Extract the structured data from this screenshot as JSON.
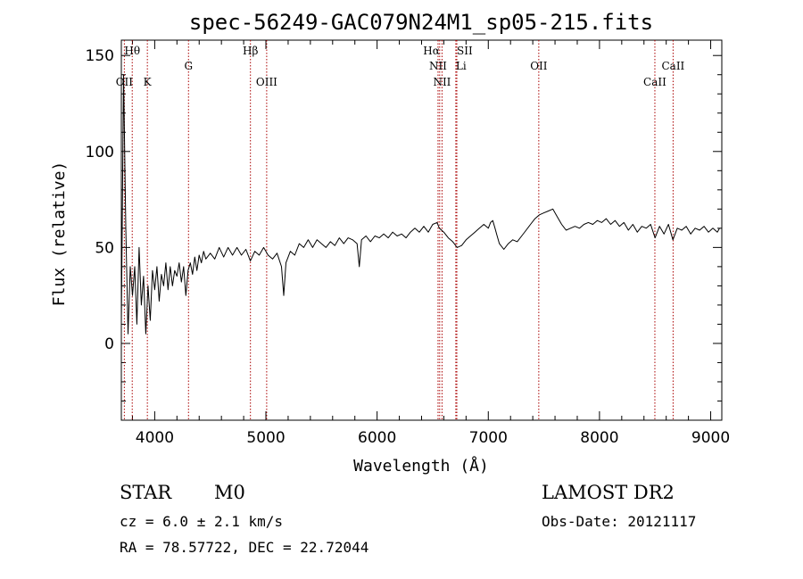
{
  "chart_data": {
    "type": "line",
    "title": "spec-56249-GAC079N24M1_sp05-215.fits",
    "xlabel": "Wavelength (Å)",
    "ylabel": "Flux (relative)",
    "xlim": [
      3700,
      9100
    ],
    "ylim": [
      -40,
      158
    ],
    "x_ticks": [
      4000,
      5000,
      6000,
      7000,
      8000,
      9000
    ],
    "y_ticks": [
      0,
      50,
      100,
      150
    ],
    "x_minor_step": 200,
    "y_minor_step": 10,
    "line_color": "#000000",
    "marker_color": "#aa0000",
    "series": [
      {
        "points": [
          [
            3700,
            10
          ],
          [
            3720,
            140
          ],
          [
            3740,
            60
          ],
          [
            3760,
            5
          ],
          [
            3780,
            40
          ],
          [
            3800,
            25
          ],
          [
            3820,
            40
          ],
          [
            3840,
            10
          ],
          [
            3860,
            50
          ],
          [
            3880,
            20
          ],
          [
            3900,
            35
          ],
          [
            3920,
            5
          ],
          [
            3940,
            30
          ],
          [
            3960,
            12
          ],
          [
            3980,
            38
          ],
          [
            4000,
            28
          ],
          [
            4020,
            40
          ],
          [
            4040,
            22
          ],
          [
            4060,
            36
          ],
          [
            4080,
            30
          ],
          [
            4100,
            42
          ],
          [
            4120,
            28
          ],
          [
            4140,
            40
          ],
          [
            4160,
            30
          ],
          [
            4180,
            38
          ],
          [
            4200,
            35
          ],
          [
            4220,
            42
          ],
          [
            4240,
            32
          ],
          [
            4260,
            40
          ],
          [
            4280,
            25
          ],
          [
            4300,
            38
          ],
          [
            4320,
            42
          ],
          [
            4340,
            36
          ],
          [
            4360,
            45
          ],
          [
            4380,
            38
          ],
          [
            4400,
            46
          ],
          [
            4420,
            42
          ],
          [
            4440,
            48
          ],
          [
            4460,
            44
          ],
          [
            4500,
            47
          ],
          [
            4540,
            44
          ],
          [
            4580,
            50
          ],
          [
            4620,
            45
          ],
          [
            4660,
            50
          ],
          [
            4700,
            46
          ],
          [
            4740,
            50
          ],
          [
            4780,
            46
          ],
          [
            4820,
            49
          ],
          [
            4860,
            43
          ],
          [
            4900,
            48
          ],
          [
            4940,
            46
          ],
          [
            4980,
            50
          ],
          [
            5020,
            46
          ],
          [
            5060,
            44
          ],
          [
            5100,
            47
          ],
          [
            5140,
            40
          ],
          [
            5160,
            25
          ],
          [
            5180,
            42
          ],
          [
            5220,
            48
          ],
          [
            5260,
            46
          ],
          [
            5300,
            52
          ],
          [
            5340,
            50
          ],
          [
            5380,
            54
          ],
          [
            5420,
            50
          ],
          [
            5460,
            54
          ],
          [
            5500,
            52
          ],
          [
            5540,
            50
          ],
          [
            5580,
            53
          ],
          [
            5620,
            51
          ],
          [
            5660,
            55
          ],
          [
            5700,
            52
          ],
          [
            5740,
            55
          ],
          [
            5780,
            54
          ],
          [
            5820,
            52
          ],
          [
            5840,
            40
          ],
          [
            5860,
            54
          ],
          [
            5900,
            56
          ],
          [
            5940,
            53
          ],
          [
            5980,
            56
          ],
          [
            6020,
            55
          ],
          [
            6060,
            57
          ],
          [
            6100,
            55
          ],
          [
            6140,
            58
          ],
          [
            6180,
            56
          ],
          [
            6220,
            57
          ],
          [
            6260,
            55
          ],
          [
            6300,
            58
          ],
          [
            6340,
            60
          ],
          [
            6380,
            58
          ],
          [
            6420,
            61
          ],
          [
            6460,
            58
          ],
          [
            6500,
            62
          ],
          [
            6540,
            63
          ],
          [
            6560,
            60
          ],
          [
            6580,
            59
          ],
          [
            6600,
            58
          ],
          [
            6640,
            55
          ],
          [
            6680,
            53
          ],
          [
            6720,
            50
          ],
          [
            6760,
            51
          ],
          [
            6800,
            54
          ],
          [
            6840,
            56
          ],
          [
            6880,
            58
          ],
          [
            6920,
            60
          ],
          [
            6960,
            62
          ],
          [
            7000,
            60
          ],
          [
            7020,
            63
          ],
          [
            7040,
            64
          ],
          [
            7060,
            60
          ],
          [
            7080,
            56
          ],
          [
            7100,
            52
          ],
          [
            7140,
            49
          ],
          [
            7180,
            52
          ],
          [
            7220,
            54
          ],
          [
            7260,
            53
          ],
          [
            7300,
            56
          ],
          [
            7340,
            59
          ],
          [
            7380,
            62
          ],
          [
            7420,
            65
          ],
          [
            7460,
            67
          ],
          [
            7500,
            68
          ],
          [
            7540,
            69
          ],
          [
            7580,
            70
          ],
          [
            7620,
            66
          ],
          [
            7660,
            62
          ],
          [
            7700,
            59
          ],
          [
            7740,
            60
          ],
          [
            7780,
            61
          ],
          [
            7820,
            60
          ],
          [
            7860,
            62
          ],
          [
            7900,
            63
          ],
          [
            7940,
            62
          ],
          [
            7980,
            64
          ],
          [
            8020,
            63
          ],
          [
            8060,
            65
          ],
          [
            8100,
            62
          ],
          [
            8140,
            64
          ],
          [
            8180,
            61
          ],
          [
            8220,
            63
          ],
          [
            8260,
            59
          ],
          [
            8300,
            62
          ],
          [
            8340,
            58
          ],
          [
            8380,
            61
          ],
          [
            8420,
            60
          ],
          [
            8460,
            62
          ],
          [
            8500,
            55
          ],
          [
            8540,
            61
          ],
          [
            8580,
            57
          ],
          [
            8620,
            62
          ],
          [
            8660,
            54
          ],
          [
            8700,
            60
          ],
          [
            8740,
            59
          ],
          [
            8780,
            61
          ],
          [
            8820,
            57
          ],
          [
            8860,
            60
          ],
          [
            8900,
            59
          ],
          [
            8940,
            61
          ],
          [
            8980,
            58
          ],
          [
            9020,
            60
          ],
          [
            9060,
            58
          ],
          [
            9080,
            60
          ]
        ]
      }
    ],
    "spectral_lines": [
      {
        "label": "OII",
        "wavelength": 3727,
        "row": 3,
        "anchor": "middle"
      },
      {
        "label": "Hθ",
        "wavelength": 3798,
        "row": 1,
        "anchor": "middle"
      },
      {
        "label": "K",
        "wavelength": 3934,
        "row": 3,
        "anchor": "middle"
      },
      {
        "label": "G",
        "wavelength": 4304,
        "row": 2,
        "anchor": "middle"
      },
      {
        "label": "Hβ",
        "wavelength": 4861,
        "row": 1,
        "anchor": "middle"
      },
      {
        "label": "OIII",
        "wavelength": 5007,
        "row": 3,
        "anchor": "middle"
      },
      {
        "label": "Hα",
        "wavelength": 6563,
        "row": 1,
        "anchor": "end"
      },
      {
        "label": "NII",
        "wavelength": 6548,
        "row": 2,
        "anchor": "middle"
      },
      {
        "label": "NII",
        "wavelength": 6584,
        "row": 3,
        "anchor": "middle"
      },
      {
        "label": "SII",
        "wavelength": 6717,
        "row": 1,
        "anchor": "start"
      },
      {
        "label": "Li",
        "wavelength": 6708,
        "row": 2,
        "anchor": "start"
      },
      {
        "label": "OII",
        "wavelength": 7454,
        "row": 2,
        "anchor": "middle"
      },
      {
        "label": "CaII",
        "wavelength": 8498,
        "row": 3,
        "anchor": "middle"
      },
      {
        "label": "CaII",
        "wavelength": 8662,
        "row": 2,
        "anchor": "middle"
      }
    ]
  },
  "info": {
    "class": "STAR",
    "subclass": "M0",
    "cz": "cz = 6.0 ± 2.1 km/s",
    "coords": "RA =  78.57722, DEC =  22.72044",
    "survey": "LAMOST DR2",
    "obs_date": "Obs-Date: 20121117"
  }
}
